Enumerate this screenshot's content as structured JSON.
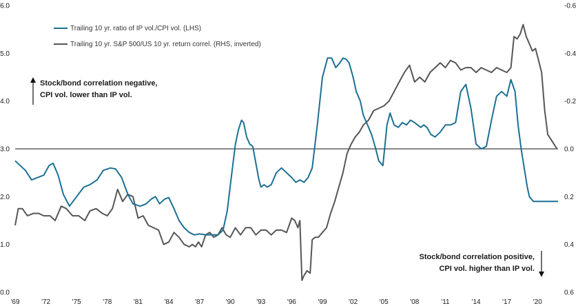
{
  "chart_data": {
    "type": "line",
    "x_range": [
      1969,
      2022
    ],
    "x_tick_labels": [
      "'69",
      "'72",
      "'75",
      "'78",
      "'81",
      "'84",
      "'87",
      "'90",
      "'93",
      "'96",
      "'99",
      "'02",
      "'05",
      "'08",
      "'11",
      "'14",
      "'17",
      "'20"
    ],
    "y_left": {
      "range": [
        0.0,
        6.0
      ],
      "tick_labels": [
        "0.0",
        "1.0",
        "2.0",
        "3.0",
        "4.0",
        "5.0",
        "6.0"
      ]
    },
    "y_right": {
      "range": [
        0.6,
        -0.6
      ],
      "inverted": true,
      "tick_labels": [
        "0.6",
        "0.4",
        "0.2",
        "0.0",
        "-0.2",
        "-0.4",
        "-0.6"
      ]
    },
    "reference_line_y": 3.0,
    "legend": [
      {
        "label": "Trailing 10 yr. ratio of IP vol./CPI vol. (LHS)",
        "color": "#1b6f93"
      },
      {
        "label": "Trailing 10 yr. S&P 500/US 10 yr. return correl. (RHS, inverted)",
        "color": "#555555"
      }
    ],
    "annotations": {
      "top_left": [
        "Stock/bond correlation negative,",
        "CPI vol. lower than IP vol."
      ],
      "bottom_right": [
        "Stock/bond correlation positive,",
        "CPI vol. higher than IP vol."
      ]
    },
    "series": [
      {
        "axis": "left",
        "color": "#1b6f93",
        "x": [
          1969.0,
          1969.5,
          1970.0,
          1970.6,
          1971.2,
          1971.8,
          1972.3,
          1972.7,
          1973.2,
          1973.7,
          1974.3,
          1975.0,
          1975.7,
          1976.3,
          1977.0,
          1977.6,
          1978.3,
          1978.8,
          1979.4,
          1980.0,
          1980.5,
          1981.2,
          1981.8,
          1982.3,
          1982.7,
          1983.1,
          1983.6,
          1984.0,
          1984.5,
          1985.0,
          1985.5,
          1986.0,
          1986.5,
          1987.0,
          1987.6,
          1988.2,
          1988.8,
          1989.3,
          1989.7,
          1990.1,
          1990.5,
          1990.8,
          1991.1,
          1991.3,
          1991.6,
          1991.9,
          1992.2,
          1992.5,
          1992.8,
          1993.0,
          1993.3,
          1993.6,
          1994.0,
          1994.5,
          1995.0,
          1995.5,
          1996.0,
          1996.4,
          1996.8,
          1997.2,
          1997.6,
          1998.0,
          1998.5,
          1999.0,
          1999.5,
          1999.9,
          2000.3,
          2000.7,
          2001.0,
          2001.3,
          2001.6,
          2002.0,
          2002.3,
          2002.7,
          2003.0,
          2003.4,
          2003.8,
          2004.2,
          2004.5,
          2004.9,
          2005.3,
          2005.6,
          2006.0,
          2006.4,
          2006.8,
          2007.2,
          2007.6,
          2008.0,
          2008.3,
          2008.6,
          2008.9,
          2009.2,
          2009.6,
          2010.0,
          2010.5,
          2011.0,
          2011.5,
          2012.0,
          2012.5,
          2013.0,
          2013.5,
          2014.0,
          2014.5,
          2015.0,
          2015.5,
          2016.0,
          2016.5,
          2017.0,
          2017.4,
          2017.8,
          2018.1,
          2018.4,
          2018.7,
          2019.0,
          2019.2,
          2019.4,
          2019.6,
          2019.8,
          2020.1,
          2020.4,
          2020.7,
          2021.0,
          2021.3,
          2021.6,
          2021.9,
          2022.0
        ],
        "y": [
          2.75,
          2.65,
          2.55,
          2.35,
          2.4,
          2.45,
          2.65,
          2.7,
          2.45,
          2.05,
          1.8,
          2.0,
          2.2,
          2.25,
          2.35,
          2.55,
          2.6,
          2.58,
          2.4,
          2.05,
          1.85,
          1.8,
          1.85,
          1.95,
          2.0,
          1.85,
          1.95,
          1.98,
          1.75,
          1.5,
          1.35,
          1.25,
          1.2,
          1.22,
          1.2,
          1.2,
          1.2,
          1.3,
          1.7,
          2.4,
          3.1,
          3.4,
          3.6,
          3.55,
          3.25,
          3.1,
          3.05,
          2.7,
          2.35,
          2.2,
          2.25,
          2.2,
          2.25,
          2.5,
          2.6,
          2.5,
          2.4,
          2.3,
          2.35,
          2.3,
          2.4,
          2.6,
          3.5,
          4.5,
          4.9,
          4.9,
          4.7,
          4.8,
          4.9,
          4.88,
          4.8,
          4.5,
          4.2,
          4.0,
          3.7,
          3.5,
          3.3,
          3.0,
          2.75,
          2.65,
          3.5,
          3.75,
          3.5,
          3.45,
          3.55,
          3.5,
          3.6,
          3.55,
          3.5,
          3.45,
          3.5,
          3.45,
          3.3,
          3.25,
          3.35,
          3.5,
          3.5,
          3.55,
          4.2,
          4.35,
          3.85,
          3.1,
          3.0,
          3.05,
          3.6,
          4.1,
          4.2,
          4.1,
          4.45,
          4.2,
          3.5,
          3.0,
          2.6,
          2.2,
          2.0,
          1.95,
          1.9,
          1.9,
          1.9,
          1.9,
          1.9,
          1.9,
          1.9,
          1.9,
          1.9,
          1.9
        ],
        "note": "ratio series"
      },
      {
        "axis": "right",
        "color": "#555555",
        "x": [
          1969.0,
          1969.3,
          1969.7,
          1970.2,
          1970.8,
          1971.3,
          1971.8,
          1972.4,
          1972.9,
          1973.5,
          1974.0,
          1974.6,
          1975.2,
          1975.8,
          1976.3,
          1976.9,
          1977.5,
          1978.0,
          1978.5,
          1979.0,
          1979.5,
          1980.0,
          1980.5,
          1981.0,
          1981.5,
          1982.0,
          1982.5,
          1983.0,
          1983.5,
          1984.0,
          1984.5,
          1985.0,
          1985.5,
          1986.0,
          1986.3,
          1986.6,
          1986.9,
          1987.2,
          1987.6,
          1988.0,
          1988.4,
          1988.8,
          1989.2,
          1989.6,
          1990.0,
          1990.5,
          1991.0,
          1991.5,
          1992.0,
          1992.5,
          1993.0,
          1993.5,
          1994.0,
          1994.5,
          1995.0,
          1995.5,
          1996.0,
          1996.3,
          1996.6,
          1996.8,
          1997.0,
          1997.2,
          1997.5,
          1997.8,
          1998.0,
          1998.3,
          1998.6,
          1999.0,
          1999.4,
          1999.8,
          2000.2,
          2000.6,
          2001.0,
          2001.4,
          2001.8,
          2002.2,
          2002.6,
          2003.0,
          2003.5,
          2004.0,
          2004.5,
          2005.0,
          2005.5,
          2006.0,
          2006.5,
          2007.0,
          2007.5,
          2008.0,
          2008.5,
          2009.0,
          2009.5,
          2010.0,
          2010.5,
          2011.0,
          2011.5,
          2012.0,
          2012.5,
          2013.0,
          2013.5,
          2014.0,
          2014.5,
          2015.0,
          2015.5,
          2016.0,
          2016.5,
          2017.0,
          2017.4,
          2017.7,
          2018.0,
          2018.3,
          2018.6,
          2018.9,
          2019.2,
          2019.5,
          2019.8,
          2020.1,
          2020.4,
          2020.7,
          2021.0,
          2021.3,
          2021.6,
          2021.9
        ],
        "y": [
          0.32,
          0.25,
          0.25,
          0.28,
          0.27,
          0.27,
          0.28,
          0.28,
          0.3,
          0.24,
          0.25,
          0.28,
          0.28,
          0.3,
          0.26,
          0.25,
          0.27,
          0.28,
          0.25,
          0.17,
          0.22,
          0.19,
          0.2,
          0.29,
          0.28,
          0.32,
          0.33,
          0.34,
          0.4,
          0.39,
          0.35,
          0.37,
          0.4,
          0.41,
          0.4,
          0.41,
          0.39,
          0.41,
          0.36,
          0.35,
          0.37,
          0.36,
          0.33,
          0.36,
          0.37,
          0.33,
          0.36,
          0.33,
          0.33,
          0.36,
          0.34,
          0.34,
          0.36,
          0.34,
          0.34,
          0.35,
          0.29,
          0.3,
          0.33,
          0.3,
          0.55,
          0.53,
          0.51,
          0.52,
          0.38,
          0.37,
          0.37,
          0.35,
          0.33,
          0.27,
          0.22,
          0.16,
          0.1,
          0.02,
          -0.02,
          -0.05,
          -0.07,
          -0.1,
          -0.12,
          -0.16,
          -0.17,
          -0.18,
          -0.2,
          -0.24,
          -0.28,
          -0.32,
          -0.35,
          -0.28,
          -0.3,
          -0.28,
          -0.32,
          -0.34,
          -0.36,
          -0.34,
          -0.37,
          -0.36,
          -0.33,
          -0.34,
          -0.34,
          -0.32,
          -0.34,
          -0.33,
          -0.32,
          -0.34,
          -0.33,
          -0.32,
          -0.34,
          -0.47,
          -0.46,
          -0.48,
          -0.52,
          -0.47,
          -0.44,
          -0.41,
          -0.42,
          -0.37,
          -0.32,
          -0.16,
          -0.06,
          -0.04,
          -0.02,
          0.0
        ]
      }
    ]
  }
}
